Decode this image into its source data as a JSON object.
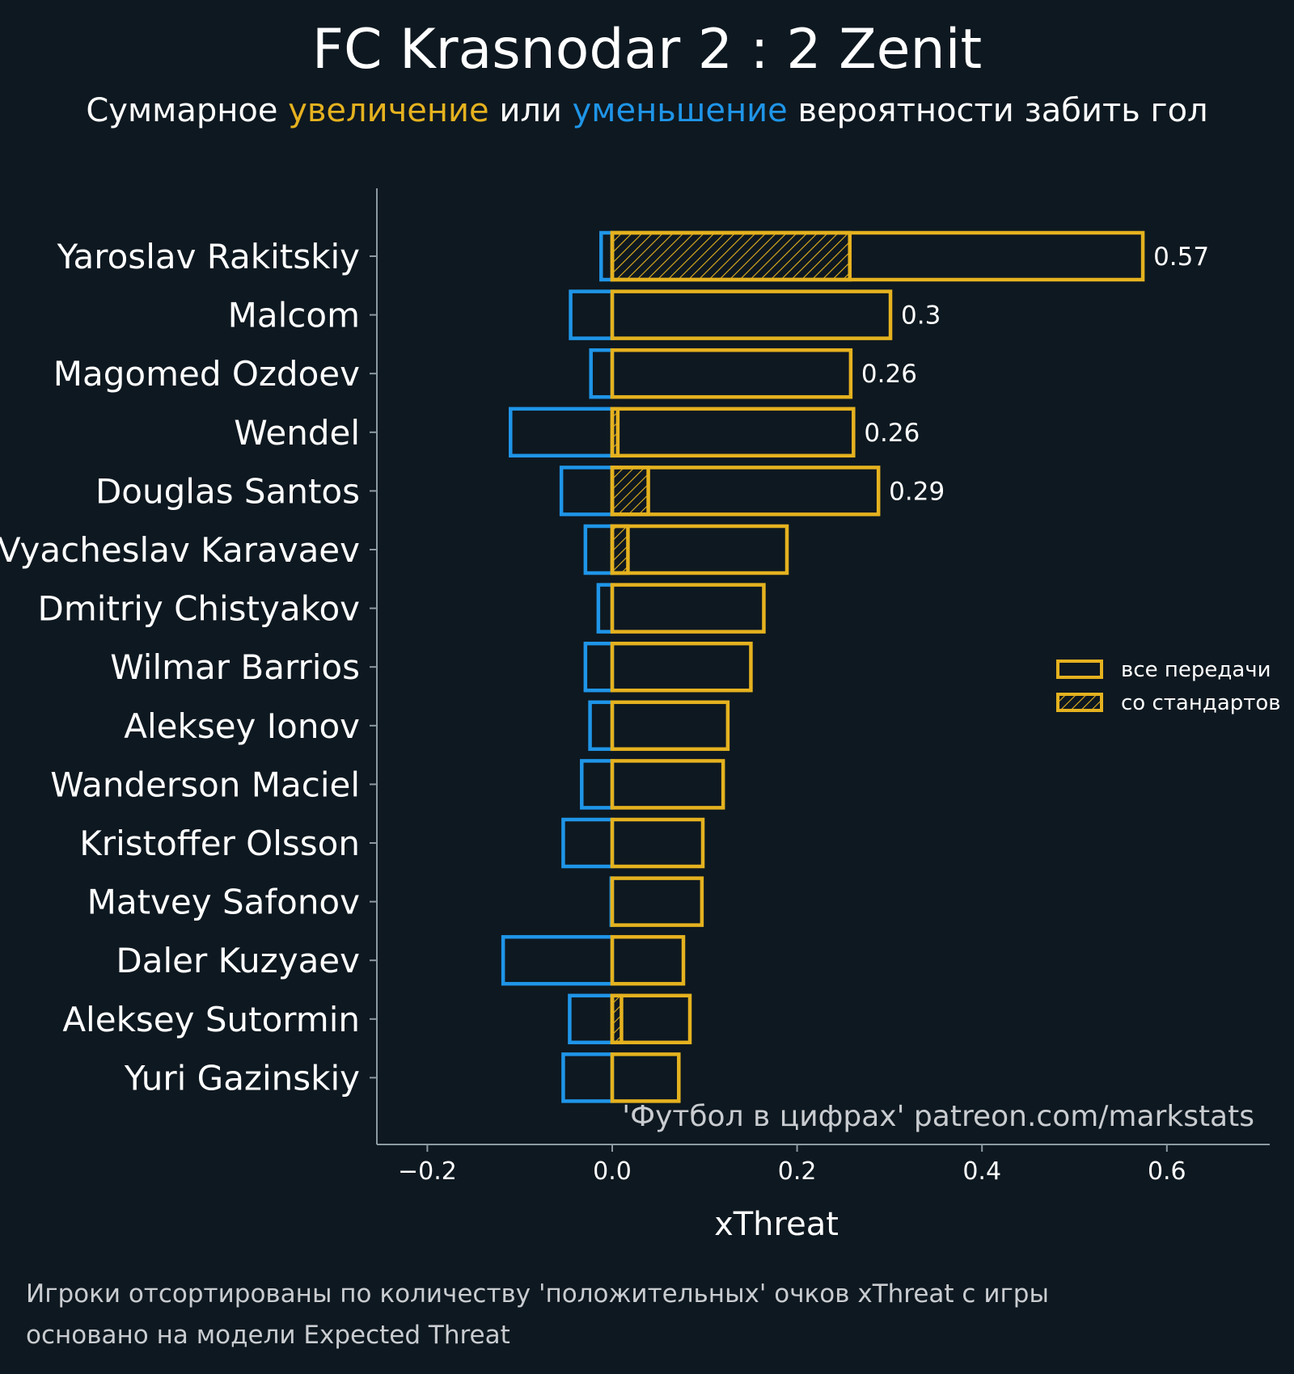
{
  "title": "FC Krasnodar 2 : 2 Zenit",
  "subtitle": {
    "part1": "Суммарное ",
    "increase": "увеличение",
    "part2": " или ",
    "decrease": "уменьшение",
    "part3": " вероятности забить гол"
  },
  "colors": {
    "background": "#0e1820",
    "positive": "#e5b21f",
    "negative": "#1f95e8",
    "axis": "#8d9aa2",
    "text": "#ffffff",
    "footnote": "#c9ccd0"
  },
  "watermark": "'Футбол в цифрах' patreon.com/markstats",
  "footnotes": [
    "Игроки отсортированы по количеству 'положительных' очков xThreat с игры",
    "основано на модели Expected Threat"
  ],
  "chart_data": {
    "type": "bar",
    "orientation": "horizontal",
    "xlabel": "xThreat",
    "xlim": [
      -0.255,
      0.71
    ],
    "xticks": [
      -0.2,
      0.0,
      0.2,
      0.4,
      0.6
    ],
    "xtick_labels": [
      "−0.2",
      "0.0",
      "0.2",
      "0.4",
      "0.6"
    ],
    "grid": false,
    "legend_position": "right",
    "legend": [
      {
        "label": "все передачи",
        "style": "outline"
      },
      {
        "label": "со стандартов",
        "style": "hatched"
      }
    ],
    "players": [
      {
        "name": "Yaroslav Rakitskiy",
        "positive": 0.574,
        "negative": -0.012,
        "set_piece": 0.257,
        "label": "0.57"
      },
      {
        "name": "Malcom",
        "positive": 0.301,
        "negative": -0.045,
        "set_piece": 0.0,
        "label": "0.3"
      },
      {
        "name": "Magomed Ozdoev",
        "positive": 0.258,
        "negative": -0.023,
        "set_piece": 0.0,
        "label": "0.26"
      },
      {
        "name": "Wendel",
        "positive": 0.261,
        "negative": -0.11,
        "set_piece": 0.006,
        "label": "0.26"
      },
      {
        "name": "Douglas Santos",
        "positive": 0.288,
        "negative": -0.055,
        "set_piece": 0.039,
        "label": "0.29"
      },
      {
        "name": "Vyacheslav Karavaev",
        "positive": 0.189,
        "negative": -0.029,
        "set_piece": 0.017,
        "label": ""
      },
      {
        "name": "Dmitriy Chistyakov",
        "positive": 0.164,
        "negative": -0.015,
        "set_piece": 0.0,
        "label": ""
      },
      {
        "name": "Wilmar Barrios",
        "positive": 0.15,
        "negative": -0.029,
        "set_piece": 0.0,
        "label": ""
      },
      {
        "name": "Aleksey Ionov",
        "positive": 0.125,
        "negative": -0.024,
        "set_piece": 0.0,
        "label": ""
      },
      {
        "name": "Wanderson Maciel",
        "positive": 0.12,
        "negative": -0.033,
        "set_piece": 0.0,
        "label": ""
      },
      {
        "name": "Kristoffer Olsson",
        "positive": 0.098,
        "negative": -0.053,
        "set_piece": 0.0,
        "label": ""
      },
      {
        "name": "Matvey Safonov",
        "positive": 0.097,
        "negative": -0.001,
        "set_piece": 0.0,
        "label": ""
      },
      {
        "name": "Daler Kuzyaev",
        "positive": 0.077,
        "negative": -0.118,
        "set_piece": 0.0,
        "label": ""
      },
      {
        "name": "Aleksey Sutormin",
        "positive": 0.084,
        "negative": -0.046,
        "set_piece": 0.01,
        "label": ""
      },
      {
        "name": "Yuri Gazinskiy",
        "positive": 0.072,
        "negative": -0.053,
        "set_piece": 0.0,
        "label": ""
      }
    ]
  }
}
